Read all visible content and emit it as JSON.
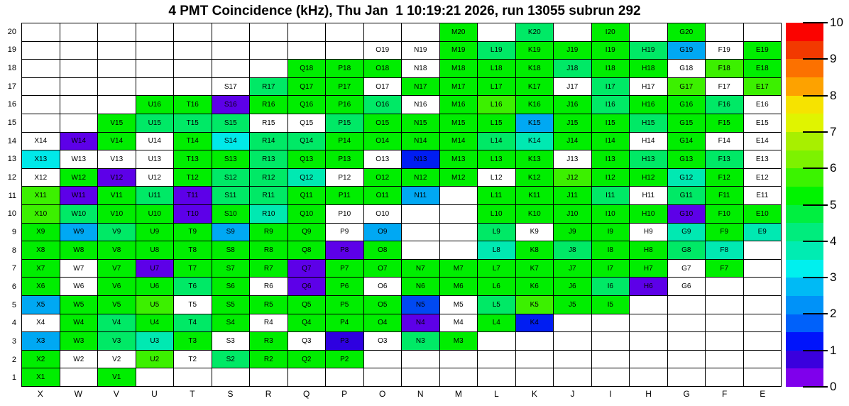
{
  "chart_data": {
    "type": "heatmap",
    "title": "4 PMT Coincidence (kHz), Thu Jan  1 10:19:21 2026, run 13055 subrun 292",
    "xlabel": "",
    "ylabel": "",
    "columns": [
      "X",
      "W",
      "V",
      "U",
      "T",
      "S",
      "R",
      "Q",
      "P",
      "O",
      "N",
      "M",
      "L",
      "K",
      "J",
      "I",
      "H",
      "G",
      "F",
      "E"
    ],
    "rows": [
      20,
      19,
      18,
      17,
      16,
      15,
      14,
      13,
      12,
      11,
      10,
      9,
      8,
      7,
      6,
      5,
      4,
      3,
      2,
      1
    ],
    "value_range": [
      0,
      10
    ],
    "legend_position": "right",
    "cell_label_format": "column_letter + row_number",
    "palette": {
      "g": {
        "name": "green",
        "hex": "#00ee00",
        "approx_value": 5.3
      },
      "lg": {
        "name": "light-green",
        "hex": "#3cf000",
        "approx_value": 6.0
      },
      "sg": {
        "name": "spring-green",
        "hex": "#00e966",
        "approx_value": 4.6
      },
      "tq": {
        "name": "turquoise",
        "hex": "#00e9b2",
        "approx_value": 3.8
      },
      "cy": {
        "name": "cyan",
        "hex": "#00e9e9",
        "approx_value": 3.3
      },
      "lb": {
        "name": "light-blue",
        "hex": "#00a8f3",
        "approx_value": 2.7
      },
      "bl": {
        "name": "blue",
        "hex": "#0049f2",
        "approx_value": 1.8
      },
      "db": {
        "name": "dark-blue",
        "hex": "#001df2",
        "approx_value": 1.4
      },
      "bp": {
        "name": "blue-purple",
        "hex": "#2e00e0",
        "approx_value": 1.0
      },
      "pu": {
        "name": "purple",
        "hex": "#5d00e8",
        "approx_value": 0.4
      },
      "w": {
        "name": "white-no-data",
        "hex": "#ffffff",
        "approx_value": null
      }
    },
    "grid": [
      [
        "",
        "",
        "",
        "",
        "",
        "",
        "",
        "",
        "",
        "",
        "",
        "g",
        "",
        "sg",
        "",
        "g",
        "",
        "g",
        "",
        ""
      ],
      [
        "",
        "",
        "",
        "",
        "",
        "",
        "",
        "",
        "",
        "w",
        "w",
        "g",
        "sg",
        "g",
        "g",
        "g",
        "sg",
        "lb",
        "w",
        "g"
      ],
      [
        "",
        "",
        "",
        "",
        "",
        "",
        "",
        "g",
        "g",
        "g",
        "w",
        "g",
        "g",
        "g",
        "sg",
        "g",
        "g",
        "w",
        "lg",
        "g"
      ],
      [
        "",
        "",
        "",
        "",
        "",
        "w",
        "sg",
        "g",
        "g",
        "w",
        "g",
        "g",
        "g",
        "g",
        "w",
        "sg",
        "w",
        "lg",
        "w",
        "lg"
      ],
      [
        "",
        "",
        "",
        "g",
        "g",
        "pu",
        "g",
        "g",
        "g",
        "sg",
        "w",
        "g",
        "lg",
        "g",
        "g",
        "sg",
        "g",
        "g",
        "sg",
        "w"
      ],
      [
        "",
        "",
        "g",
        "sg",
        "sg",
        "sg",
        "w",
        "w",
        "sg",
        "g",
        "g",
        "g",
        "g",
        "lb",
        "g",
        "g",
        "sg",
        "g",
        "g",
        "w"
      ],
      [
        "w",
        "pu",
        "g",
        "w",
        "g",
        "cy",
        "sg",
        "sg",
        "g",
        "g",
        "g",
        "g",
        "sg",
        "tq",
        "g",
        "g",
        "w",
        "g",
        "w",
        "w"
      ],
      [
        "cy",
        "w",
        "w",
        "w",
        "g",
        "g",
        "sg",
        "g",
        "g",
        "w",
        "db",
        "g",
        "g",
        "g",
        "w",
        "g",
        "sg",
        "g",
        "sg",
        "w"
      ],
      [
        "w",
        "g",
        "pu",
        "w",
        "g",
        "sg",
        "sg",
        "tq",
        "w",
        "g",
        "g",
        "g",
        "w",
        "g",
        "lg",
        "g",
        "g",
        "tq",
        "g",
        "w"
      ],
      [
        "lg",
        "pu",
        "g",
        "sg",
        "pu",
        "sg",
        "sg",
        "g",
        "g",
        "g",
        "lb",
        "",
        "g",
        "g",
        "g",
        "sg",
        "w",
        "sg",
        "g",
        "w"
      ],
      [
        "lg",
        "sg",
        "g",
        "g",
        "pu",
        "g",
        "tq",
        "g",
        "w",
        "w",
        "",
        "",
        "g",
        "g",
        "g",
        "g",
        "g",
        "pu",
        "g",
        "g"
      ],
      [
        "g",
        "lb",
        "sg",
        "g",
        "g",
        "lb",
        "g",
        "g",
        "w",
        "lb",
        "",
        "",
        "sg",
        "w",
        "g",
        "g",
        "w",
        "tq",
        "g",
        "tq"
      ],
      [
        "g",
        "g",
        "g",
        "g",
        "g",
        "g",
        "g",
        "g",
        "pu",
        "g",
        "",
        "",
        "tq",
        "g",
        "sg",
        "g",
        "g",
        "sg",
        "tq",
        ""
      ],
      [
        "g",
        "w",
        "g",
        "pu",
        "g",
        "g",
        "g",
        "pu",
        "g",
        "g",
        "g",
        "g",
        "g",
        "g",
        "g",
        "g",
        "g",
        "w",
        "g",
        ""
      ],
      [
        "g",
        "w",
        "g",
        "g",
        "sg",
        "g",
        "w",
        "pu",
        "g",
        "w",
        "g",
        "g",
        "g",
        "g",
        "g",
        "sg",
        "pu",
        "w",
        "",
        ""
      ],
      [
        "lb",
        "g",
        "g",
        "lg",
        "w",
        "g",
        "g",
        "g",
        "g",
        "g",
        "bl",
        "w",
        "sg",
        "lg",
        "g",
        "g",
        "",
        "",
        "",
        ""
      ],
      [
        "w",
        "g",
        "sg",
        "g",
        "sg",
        "g",
        "w",
        "g",
        "g",
        "g",
        "pu",
        "w",
        "g",
        "db",
        "",
        "",
        "",
        "",
        "",
        ""
      ],
      [
        "lb",
        "g",
        "sg",
        "tq",
        "g",
        "w",
        "g",
        "w",
        "bp",
        "w",
        "sg",
        "g",
        "",
        "",
        "",
        "",
        "",
        "",
        "",
        ""
      ],
      [
        "g",
        "w",
        "w",
        "lg",
        "w",
        "sg",
        "g",
        "g",
        "g",
        "",
        "",
        "",
        "",
        "",
        "",
        "",
        "",
        "",
        "",
        ""
      ],
      [
        "g",
        "",
        "g",
        "",
        "",
        "",
        "",
        "",
        "",
        "",
        "",
        "",
        "",
        "",
        "",
        "",
        "",
        "",
        "",
        ""
      ]
    ],
    "colorbar": {
      "tick_labels": [
        "10",
        "9",
        "8",
        "7",
        "6",
        "5",
        "4",
        "3",
        "2",
        "1",
        "0"
      ],
      "segments_top_to_bottom": [
        "#fb0300",
        "#f23900",
        "#fc7100",
        "#fda200",
        "#f6e300",
        "#e0f400",
        "#a8ef00",
        "#7df200",
        "#3bf300",
        "#00f300",
        "#00ef40",
        "#00ec7d",
        "#00ecb2",
        "#00f0ee",
        "#00baf5",
        "#0092f8",
        "#0061fa",
        "#0014fb",
        "#3a00dd",
        "#7f00ec"
      ]
    }
  }
}
